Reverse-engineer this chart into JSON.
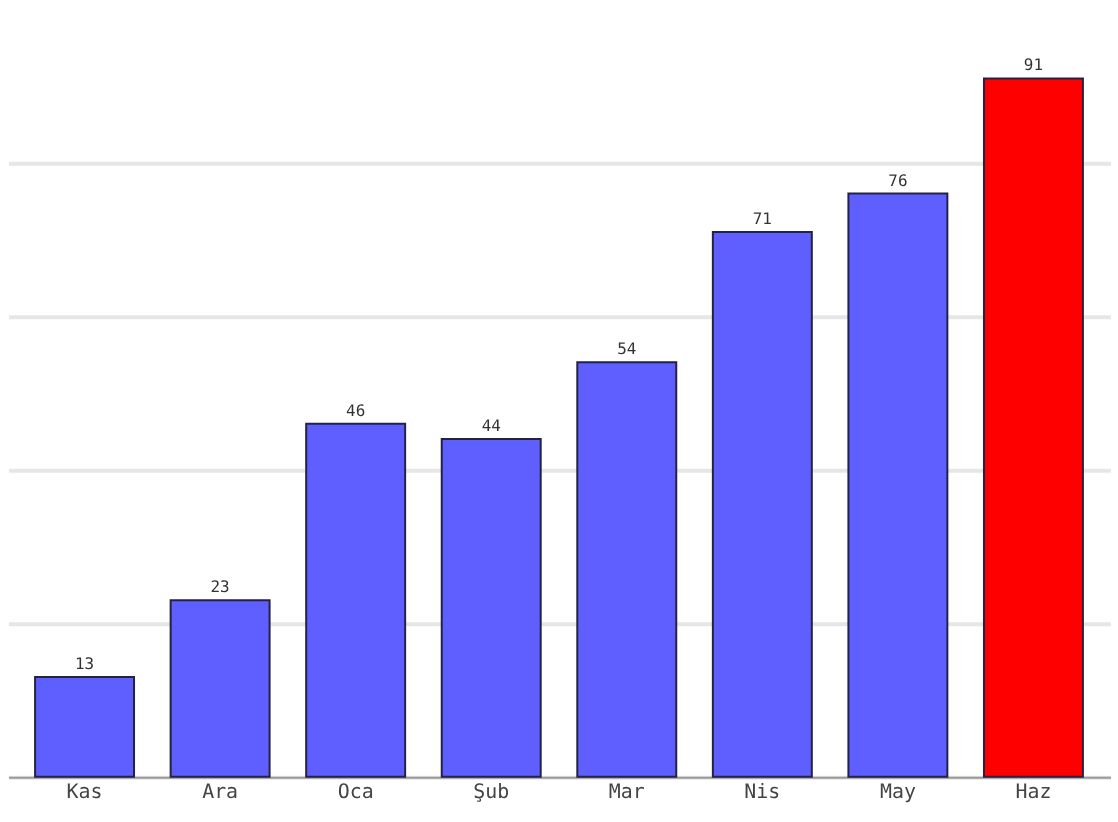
{
  "chart_data": {
    "type": "bar",
    "categories": [
      "Kas",
      "Ara",
      "Oca",
      "Şub",
      "Mar",
      "Nis",
      "May",
      "Haz"
    ],
    "values": [
      13,
      23,
      46,
      44,
      54,
      71,
      76,
      91
    ],
    "colors": [
      "#5f5fff",
      "#5f5fff",
      "#5f5fff",
      "#5f5fff",
      "#5f5fff",
      "#5f5fff",
      "#5f5fff",
      "#ff0000"
    ],
    "yticks": [
      {
        "value": 0,
        "label": null
      },
      {
        "value": 20,
        "label": null
      },
      {
        "value": 40,
        "label": null
      },
      {
        "value": 60,
        "label": null
      },
      {
        "value": 80,
        "label": null
      }
    ],
    "data_labels": true,
    "grid": "y"
  }
}
